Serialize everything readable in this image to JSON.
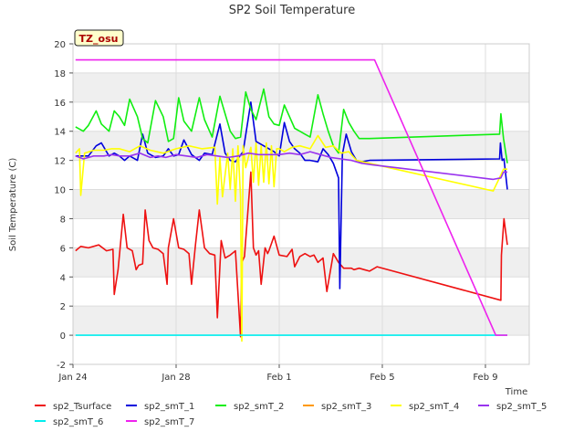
{
  "chart_data": {
    "type": "line",
    "title": "SP2 Soil Temperature",
    "ylabel": "Soil Temperature (C)",
    "xlabel": "Time",
    "site_badge": "TZ_osu",
    "xlim": [
      0,
      17.7
    ],
    "ylim": [
      -2,
      20
    ],
    "yticks": [
      -2,
      0,
      2,
      4,
      6,
      8,
      10,
      12,
      14,
      16,
      18,
      20
    ],
    "xticks": [
      {
        "value": 0,
        "label": "Jan 24"
      },
      {
        "value": 4,
        "label": "Jan 28"
      },
      {
        "value": 8,
        "label": "Feb 1"
      },
      {
        "value": 12,
        "label": "Feb 5"
      },
      {
        "value": 16,
        "label": "Feb 9"
      }
    ],
    "grid": true,
    "banded_background": true,
    "legend_position": "bottom",
    "series": [
      {
        "name": "sp2_Tsurface",
        "color": "#ee1111",
        "x": [
          0.1,
          0.3,
          0.6,
          1.0,
          1.3,
          1.55,
          1.6,
          1.75,
          1.95,
          2.1,
          2.3,
          2.45,
          2.55,
          2.7,
          2.8,
          2.95,
          3.1,
          3.3,
          3.5,
          3.65,
          3.7,
          3.9,
          4.1,
          4.3,
          4.5,
          4.6,
          4.75,
          4.9,
          5.1,
          5.3,
          5.5,
          5.6,
          5.75,
          5.9,
          6.1,
          6.3,
          6.5,
          6.55,
          6.65,
          6.9,
          7.0,
          7.1,
          7.2,
          7.3,
          7.45,
          7.55,
          7.6,
          7.8,
          8.0,
          8.3,
          8.5,
          8.6,
          8.8,
          9.0,
          9.2,
          9.35,
          9.5,
          9.7,
          9.85,
          10.1,
          10.3,
          10.5,
          10.8,
          10.9,
          11.1,
          11.3,
          11.5,
          11.8,
          16.6,
          16.62,
          16.72,
          16.85
        ],
        "y": [
          5.8,
          6.1,
          6.0,
          6.2,
          5.8,
          5.9,
          2.8,
          4.5,
          8.3,
          6.0,
          5.8,
          4.5,
          4.8,
          4.9,
          8.6,
          6.5,
          6.0,
          5.9,
          5.6,
          3.5,
          6.0,
          8.0,
          6.0,
          5.9,
          5.6,
          3.5,
          6.2,
          8.6,
          6.0,
          5.6,
          5.5,
          1.2,
          6.5,
          5.3,
          5.5,
          5.8,
          -0.1,
          5.0,
          5.4,
          11.2,
          6.0,
          5.5,
          5.8,
          3.5,
          6.0,
          5.6,
          5.8,
          6.8,
          5.5,
          5.4,
          5.9,
          4.7,
          5.4,
          5.6,
          5.4,
          5.5,
          5.0,
          5.3,
          3.0,
          5.6,
          5.0,
          4.6,
          4.6,
          4.5,
          4.6,
          4.5,
          4.4,
          4.7,
          2.4,
          5.5,
          8.0,
          6.2
        ]
      },
      {
        "name": "sp2_smT_1",
        "color": "#0000dd",
        "x": [
          0.1,
          0.6,
          0.9,
          1.1,
          1.4,
          1.6,
          1.8,
          2.0,
          2.2,
          2.5,
          2.7,
          2.9,
          3.2,
          3.5,
          3.7,
          3.9,
          4.1,
          4.3,
          4.6,
          4.9,
          5.1,
          5.4,
          5.7,
          5.9,
          6.1,
          6.3,
          6.6,
          6.9,
          7.1,
          7.4,
          7.6,
          7.8,
          8.0,
          8.2,
          8.4,
          8.6,
          8.8,
          9.0,
          9.2,
          9.5,
          9.7,
          9.9,
          10.1,
          10.3,
          10.35,
          10.45,
          10.6,
          10.8,
          11.0,
          11.2,
          11.5,
          16.55,
          16.58,
          16.65,
          16.72,
          16.85
        ],
        "y": [
          12.3,
          12.3,
          13.0,
          13.2,
          12.3,
          12.5,
          12.3,
          12.0,
          12.3,
          12.0,
          13.8,
          12.5,
          12.2,
          12.3,
          12.8,
          12.3,
          12.4,
          13.4,
          12.4,
          12.0,
          12.5,
          12.4,
          14.5,
          12.5,
          12.0,
          11.9,
          12.6,
          16.0,
          13.3,
          13.0,
          12.8,
          12.6,
          12.3,
          14.6,
          13.3,
          12.8,
          12.5,
          12.0,
          12.0,
          11.9,
          12.8,
          12.4,
          11.8,
          10.8,
          3.2,
          12.4,
          13.8,
          12.6,
          12.0,
          11.9,
          12.0,
          12.1,
          13.2,
          12.0,
          12.1,
          10.0
        ]
      },
      {
        "name": "sp2_smT_2",
        "color": "#11ee11",
        "x": [
          0.1,
          0.4,
          0.6,
          0.9,
          1.1,
          1.4,
          1.6,
          1.8,
          2.0,
          2.2,
          2.5,
          2.7,
          2.9,
          3.2,
          3.5,
          3.7,
          3.9,
          4.1,
          4.3,
          4.6,
          4.9,
          5.1,
          5.4,
          5.7,
          5.9,
          6.1,
          6.3,
          6.5,
          6.7,
          6.9,
          7.1,
          7.4,
          7.6,
          7.8,
          8.0,
          8.2,
          8.4,
          8.6,
          8.8,
          9.0,
          9.2,
          9.5,
          9.7,
          9.9,
          10.1,
          10.3,
          10.5,
          10.7,
          10.9,
          11.1,
          11.3,
          11.5,
          16.55,
          16.6,
          16.7,
          16.85
        ],
        "y": [
          14.3,
          14.0,
          14.4,
          15.4,
          14.5,
          14.0,
          15.4,
          15.0,
          14.4,
          16.2,
          15.0,
          13.5,
          13.2,
          16.1,
          15.0,
          13.3,
          13.5,
          16.3,
          14.7,
          14.0,
          16.3,
          14.8,
          13.6,
          16.4,
          15.2,
          14.0,
          13.5,
          13.6,
          16.7,
          15.5,
          14.8,
          16.9,
          15.0,
          14.5,
          14.4,
          15.8,
          15.0,
          14.2,
          14.0,
          13.8,
          13.6,
          16.5,
          15.2,
          14.0,
          13.0,
          12.5,
          15.5,
          14.6,
          14.0,
          13.5,
          13.5,
          13.5,
          13.8,
          15.2,
          13.5,
          11.8
        ]
      },
      {
        "name": "sp2_smT_3",
        "color": "#ff9900",
        "x": [],
        "y": []
      },
      {
        "name": "sp2_smT_4",
        "color": "#ffff00",
        "x": [
          0.1,
          0.25,
          0.3,
          0.45,
          0.8,
          1.2,
          1.5,
          1.8,
          2.2,
          2.6,
          3.0,
          3.5,
          4.0,
          4.5,
          5.0,
          5.5,
          5.6,
          5.7,
          5.8,
          6.0,
          6.1,
          6.2,
          6.3,
          6.4,
          6.5,
          6.55,
          6.6,
          6.7,
          6.9,
          7.0,
          7.1,
          7.2,
          7.3,
          7.4,
          7.5,
          7.6,
          7.7,
          7.8,
          7.9,
          8.0,
          8.2,
          8.5,
          8.8,
          9.2,
          9.5,
          9.8,
          10.1,
          10.4,
          10.7,
          11.0,
          11.5,
          16.3,
          16.6,
          16.7,
          16.85
        ],
        "y": [
          12.5,
          12.8,
          9.6,
          12.5,
          12.7,
          12.7,
          12.8,
          12.8,
          12.6,
          13.0,
          12.7,
          12.5,
          12.8,
          13.0,
          12.8,
          12.9,
          9.0,
          12.2,
          9.5,
          12.5,
          10.0,
          12.8,
          9.2,
          13.0,
          9.5,
          -0.4,
          13.0,
          11.5,
          12.9,
          10.5,
          13.2,
          10.3,
          13.0,
          10.5,
          13.2,
          10.4,
          13.0,
          10.2,
          12.8,
          12.8,
          12.6,
          12.9,
          13.0,
          12.8,
          13.7,
          12.9,
          13.0,
          12.5,
          12.6,
          12.0,
          11.8,
          9.9,
          11.0,
          11.4,
          11.4
        ]
      },
      {
        "name": "sp2_smT_5",
        "color": "#9933ee",
        "x": [
          0.1,
          0.4,
          0.8,
          1.2,
          1.5,
          1.8,
          2.2,
          2.6,
          3.0,
          3.3,
          3.6,
          4.0,
          4.4,
          4.8,
          5.2,
          5.6,
          6.0,
          6.4,
          6.8,
          7.2,
          7.6,
          8.0,
          8.4,
          8.8,
          9.2,
          9.6,
          10.0,
          10.4,
          10.8,
          11.2,
          11.6,
          16.3,
          16.6,
          16.7,
          16.85
        ],
        "y": [
          12.3,
          12.1,
          12.3,
          12.3,
          12.4,
          12.3,
          12.3,
          12.5,
          12.2,
          12.3,
          12.2,
          12.4,
          12.3,
          12.2,
          12.4,
          12.3,
          12.2,
          12.3,
          12.5,
          12.4,
          12.4,
          12.4,
          12.5,
          12.4,
          12.6,
          12.4,
          12.2,
          12.1,
          12.0,
          11.8,
          11.7,
          10.7,
          10.8,
          11.2,
          11.2
        ]
      },
      {
        "name": "sp2_smT_6",
        "color": "#00eeee",
        "x": [
          0.1,
          16.85
        ],
        "y": [
          0.0,
          0.0
        ]
      },
      {
        "name": "sp2_smT_7",
        "color": "#ee22ee",
        "x": [
          0.1,
          11.7,
          16.4,
          16.85
        ],
        "y": [
          18.9,
          18.9,
          0.0,
          0.0
        ]
      }
    ]
  }
}
